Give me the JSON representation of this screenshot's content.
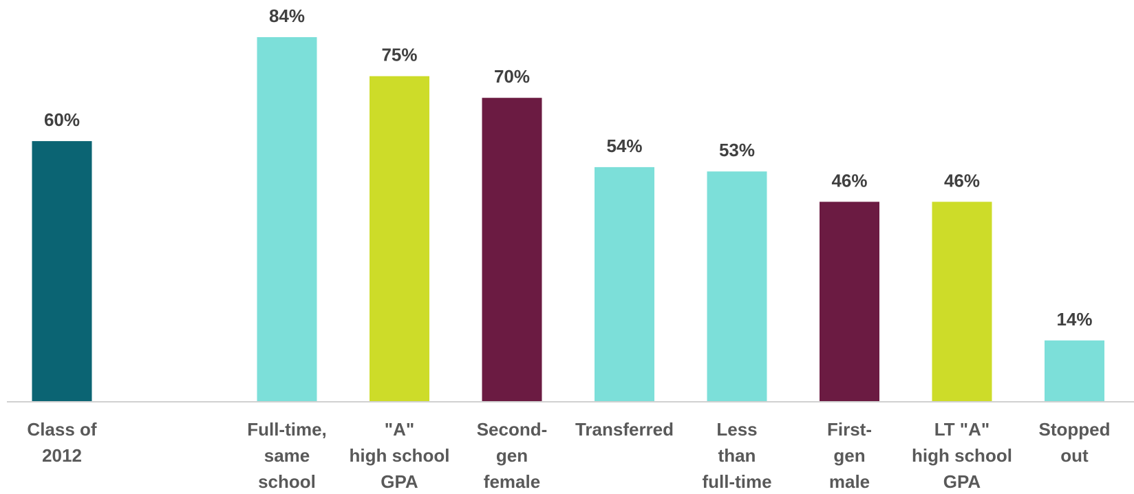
{
  "chart_data": {
    "type": "bar",
    "categories": [
      [
        "Class of",
        "2012"
      ],
      [],
      [
        "Full-time,",
        "same",
        "school"
      ],
      [
        "\"A\"",
        "high school",
        "GPA"
      ],
      [
        "Second-",
        "gen",
        "female"
      ],
      [
        "Transferred"
      ],
      [
        "Less",
        "than",
        "full-time"
      ],
      [
        "First-",
        "gen",
        "male"
      ],
      [
        "LT \"A\"",
        "high school",
        "GPA"
      ],
      [
        "Stopped",
        "out"
      ]
    ],
    "values": [
      60,
      null,
      84,
      75,
      70,
      54,
      53,
      46,
      46,
      14
    ],
    "value_labels": [
      "60%",
      "",
      "84%",
      "75%",
      "70%",
      "54%",
      "53%",
      "46%",
      "46%",
      "14%"
    ],
    "colors": [
      "#0b6473",
      null,
      "#7cdfd9",
      "#cddc29",
      "#6b1b42",
      "#7cdfd9",
      "#7cdfd9",
      "#6b1b42",
      "#cddc29",
      "#7cdfd9"
    ],
    "axis_color": "#d0d0d0",
    "ylim": [
      0,
      84
    ],
    "grid": false,
    "legend": "none",
    "title": "",
    "xlabel": "",
    "ylabel": ""
  }
}
